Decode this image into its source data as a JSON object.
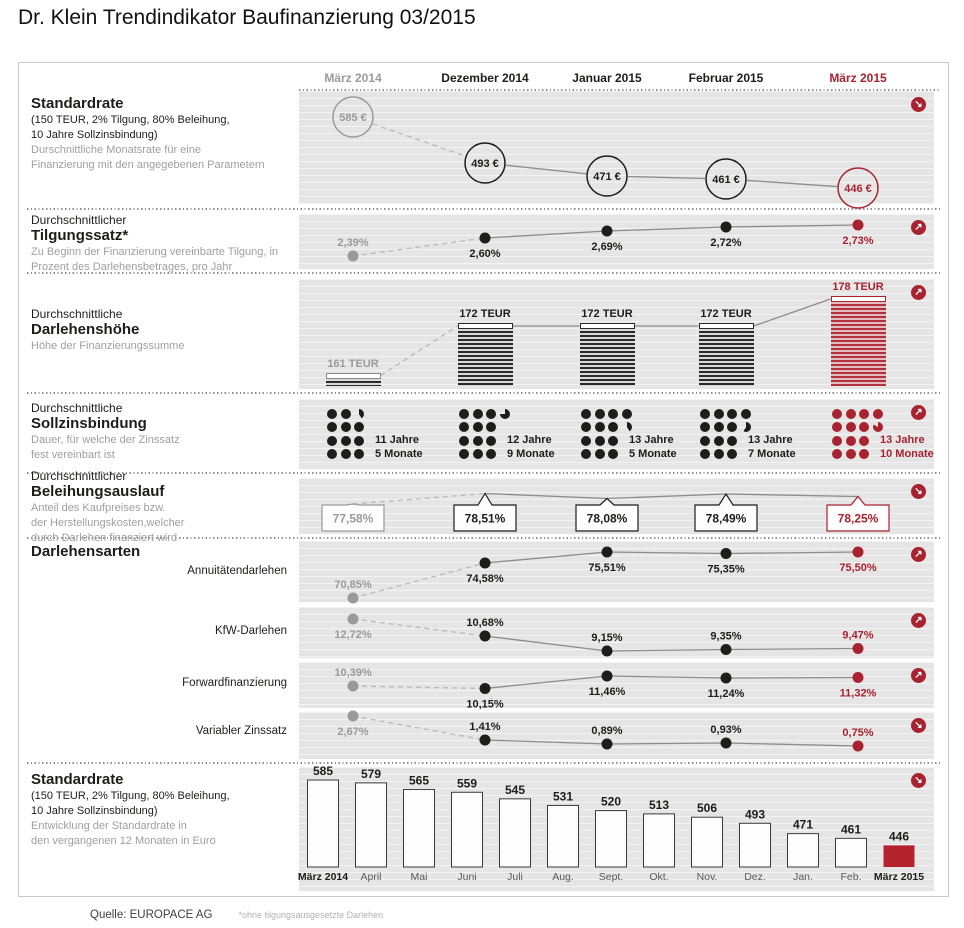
{
  "title": "Dr. Klein Trendindikator Baufinanzierung 03/2015",
  "columns": [
    {
      "label": "März 2014",
      "tone": "past"
    },
    {
      "label": "Dezember 2014",
      "tone": "current"
    },
    {
      "label": "Januar 2015",
      "tone": "current"
    },
    {
      "label": "Februar 2015",
      "tone": "current"
    },
    {
      "label": "März 2015",
      "tone": "highlight"
    }
  ],
  "accent_colors": {
    "red": "#a8232f",
    "gray": "#9a9a9a",
    "black": "#1d1d1b"
  },
  "sections": {
    "standardrate": {
      "title": "Standardrate",
      "sub1": "(150 TEUR, 2% Tilgung, 80% Beleihung,",
      "sub2": "10 Jahre Sollzinsbindung)",
      "desc1": "Durschnittliche Monatsrate für eine",
      "desc2": "Finanzierung mit den angegebenen Parametern",
      "trend": "down"
    },
    "tilgungssatz": {
      "pre": "Durchschnittlicher",
      "title": "Tilgungssatz*",
      "desc1": "Zu Beginn der Finanzierung vereinbarte Tilgung, in",
      "desc2": "Prozent des Darlehensbetrages, pro Jahr",
      "trend": "up"
    },
    "darlehenshoehe": {
      "pre": "Durchschnittliche",
      "title": "Darlehenshöhe",
      "desc1": "Höhe der Finanzierungssumme",
      "trend": "up"
    },
    "sollzinsbindung": {
      "pre": "Durchschnittliche",
      "title": "Sollzinsbindung",
      "desc1": "Dauer, für welche der Zinssatz",
      "desc2": "fest vereinbart ist",
      "trend": "up"
    },
    "beleihungsauslauf": {
      "pre": "Durchschnittlicher",
      "title": "Beleihungsauslauf",
      "desc1": "Anteil des Kaufpreises bzw.",
      "desc2": "der Herstellungskosten,welcher",
      "desc3": "durch Darlehen finanziert wird",
      "trend": "down"
    },
    "darlehensarten": {
      "title": "Darlehensarten",
      "row_labels": [
        "Annuitätendarlehen",
        "KfW-Darlehen",
        "Forwardfinanzierung",
        "Variabler Zinssatz"
      ],
      "row_trends": [
        "up",
        "up",
        "up",
        "down"
      ]
    },
    "standardrate_monthly": {
      "title": "Standardrate",
      "sub1": "(150 TEUR, 2% Tilgung, 80% Beleihung,",
      "sub2": "10 Jahre Sollzinsbindung)",
      "desc1": "Entwicklung der Standardrate in",
      "desc2": "den vergangenen 12 Monaten in Euro",
      "trend": "down"
    }
  },
  "footer": {
    "source": "Quelle: EUROPACE AG",
    "footnote": "*ohne tilgungsausgesetzte Darlehen"
  },
  "chart_data": [
    {
      "id": "standardrate_trend",
      "type": "line",
      "title": "Standardrate (Monatsrate in Euro)",
      "categories": [
        "März 2014",
        "Dezember 2014",
        "Januar 2015",
        "Februar 2015",
        "März 2015"
      ],
      "values": [
        585,
        493,
        471,
        461,
        446
      ],
      "labels": [
        "585 €",
        "493 €",
        "471 €",
        "461 €",
        "446 €"
      ],
      "unit": "€"
    },
    {
      "id": "tilgungssatz",
      "type": "line",
      "title": "Durchschnittlicher Tilgungssatz",
      "categories": [
        "März 2014",
        "Dezember 2014",
        "Januar 2015",
        "Februar 2015",
        "März 2015"
      ],
      "values": [
        2.39,
        2.6,
        2.69,
        2.72,
        2.73
      ],
      "labels": [
        "2,39%",
        "2,60%",
        "2,69%",
        "2,72%",
        "2,73%"
      ],
      "unit": "%"
    },
    {
      "id": "darlehenshoehe",
      "type": "bar",
      "title": "Durchschnittliche Darlehenshöhe",
      "categories": [
        "März 2014",
        "Dezember 2014",
        "Januar 2015",
        "Februar 2015",
        "März 2015"
      ],
      "values": [
        161,
        172,
        172,
        172,
        178
      ],
      "labels": [
        "161 TEUR",
        "172 TEUR",
        "172 TEUR",
        "172 TEUR",
        "178 TEUR"
      ],
      "unit": "TEUR"
    },
    {
      "id": "sollzinsbindung",
      "type": "pictogram",
      "title": "Durchschnittliche Sollzinsbindung",
      "categories": [
        "März 2014",
        "Dezember 2014",
        "Januar 2015",
        "Februar 2015",
        "März 2015"
      ],
      "values": [
        {
          "jahre": 11,
          "monate": 5
        },
        {
          "jahre": 12,
          "monate": 9
        },
        {
          "jahre": 13,
          "monate": 5
        },
        {
          "jahre": 13,
          "monate": 7
        },
        {
          "jahre": 13,
          "monate": 10
        }
      ],
      "labels": [
        [
          "11 Jahre",
          "5 Monate"
        ],
        [
          "12 Jahre",
          "9 Monate"
        ],
        [
          "13 Jahre",
          "5 Monate"
        ],
        [
          "13 Jahre",
          "7 Monate"
        ],
        [
          "13 Jahre",
          "10 Monate"
        ]
      ]
    },
    {
      "id": "beleihungsauslauf",
      "type": "line",
      "title": "Durchschnittlicher Beleihungsauslauf",
      "categories": [
        "März 2014",
        "Dezember 2014",
        "Januar 2015",
        "Februar 2015",
        "März 2015"
      ],
      "values": [
        77.58,
        78.51,
        78.08,
        78.49,
        78.25
      ],
      "labels": [
        "77,58%",
        "78,51%",
        "78,08%",
        "78,49%",
        "78,25%"
      ],
      "unit": "%"
    },
    {
      "id": "darlehensarten",
      "type": "line",
      "title": "Darlehensarten (Anteile)",
      "categories": [
        "März 2014",
        "Dezember 2014",
        "Januar 2015",
        "Februar 2015",
        "März 2015"
      ],
      "series": [
        {
          "name": "Annuitätendarlehen",
          "values": [
            70.85,
            74.58,
            75.51,
            75.35,
            75.5
          ],
          "labels": [
            "70,85%",
            "74,58%",
            "75,51%",
            "75,35%",
            "75,50%"
          ]
        },
        {
          "name": "KfW-Darlehen",
          "values": [
            12.72,
            10.68,
            9.15,
            9.35,
            9.47
          ],
          "labels": [
            "12,72%",
            "10,68%",
            "9,15%",
            "9,35%",
            "9,47%"
          ]
        },
        {
          "name": "Forwardfinanzierung",
          "values": [
            10.39,
            10.15,
            11.46,
            11.24,
            11.32
          ],
          "labels": [
            "10,39%",
            "10,15%",
            "11,46%",
            "11,24%",
            "11,32%"
          ]
        },
        {
          "name": "Variabler Zinssatz",
          "values": [
            2.67,
            1.41,
            0.89,
            0.93,
            0.75
          ],
          "labels": [
            "2,67%",
            "1,41%",
            "0,89%",
            "0,93%",
            "0,75%"
          ]
        }
      ],
      "unit": "%"
    },
    {
      "id": "standardrate_monthly",
      "type": "bar",
      "title": "Standardrate, vergangene 12 Monate (Euro)",
      "categories": [
        "März 2014",
        "April",
        "Mai",
        "Juni",
        "Juli",
        "Aug.",
        "Sept.",
        "Okt.",
        "Nov.",
        "Dez.",
        "Jan.",
        "Feb.",
        "März 2015"
      ],
      "values": [
        585,
        579,
        565,
        559,
        545,
        531,
        520,
        513,
        506,
        493,
        471,
        461,
        446
      ],
      "unit": "€",
      "ylim": [
        400,
        600
      ]
    }
  ]
}
